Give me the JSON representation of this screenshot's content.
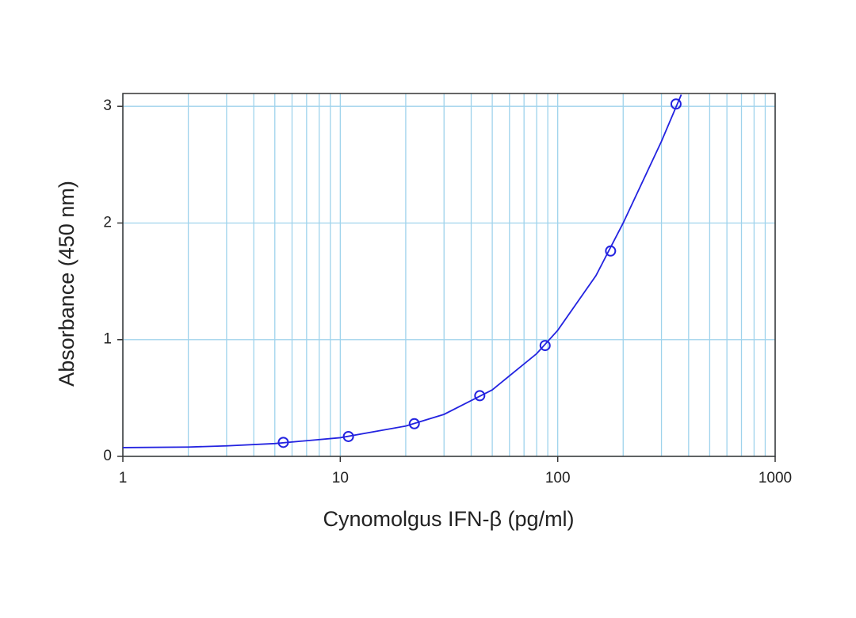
{
  "chart_data": {
    "type": "scatter",
    "xlabel": "Cynomolgus IFN-β (pg/ml)",
    "ylabel": "Absorbance (450 nm)",
    "x": [
      5.47,
      10.9,
      21.9,
      43.8,
      87.5,
      175,
      350
    ],
    "values": [
      0.12,
      0.17,
      0.28,
      0.52,
      0.95,
      1.76,
      3.02
    ],
    "fit_x": [
      1,
      2,
      3,
      5,
      10,
      20,
      30,
      50,
      80,
      100,
      150,
      200,
      300,
      370
    ],
    "fit_values": [
      0.075,
      0.08,
      0.09,
      0.11,
      0.16,
      0.26,
      0.36,
      0.57,
      0.88,
      1.08,
      1.55,
      2.0,
      2.7,
      3.1
    ],
    "color": "#2323e0",
    "xlog": true,
    "xlim": [
      1,
      1000
    ],
    "xticks": [
      1,
      10,
      100,
      1000
    ],
    "xminor": [
      2,
      3,
      4,
      5,
      6,
      7,
      8,
      9,
      20,
      30,
      40,
      50,
      60,
      70,
      80,
      90,
      200,
      300,
      400,
      500,
      600,
      700,
      800,
      900
    ],
    "ylim": [
      0,
      3.11
    ],
    "yticks": [
      0,
      1,
      2,
      3
    ],
    "grid": true,
    "grid_color": "#9fd3ec"
  }
}
